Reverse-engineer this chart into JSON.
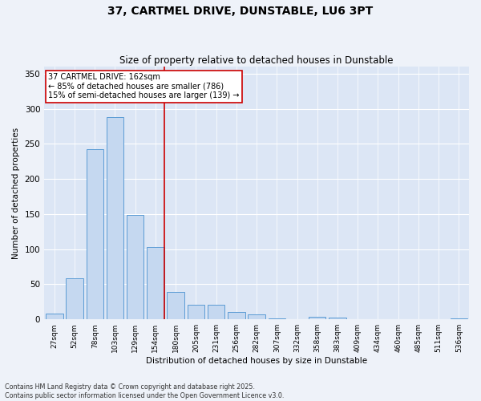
{
  "title": "37, CARTMEL DRIVE, DUNSTABLE, LU6 3PT",
  "subtitle": "Size of property relative to detached houses in Dunstable",
  "xlabel": "Distribution of detached houses by size in Dunstable",
  "ylabel": "Number of detached properties",
  "categories": [
    "27sqm",
    "52sqm",
    "78sqm",
    "103sqm",
    "129sqm",
    "154sqm",
    "180sqm",
    "205sqm",
    "231sqm",
    "256sqm",
    "282sqm",
    "307sqm",
    "332sqm",
    "358sqm",
    "383sqm",
    "409sqm",
    "434sqm",
    "460sqm",
    "485sqm",
    "511sqm",
    "536sqm"
  ],
  "values": [
    8,
    59,
    243,
    288,
    149,
    103,
    39,
    21,
    21,
    10,
    7,
    1,
    0,
    4,
    2,
    0,
    0,
    0,
    0,
    0,
    1
  ],
  "bar_color": "#c5d8f0",
  "bar_edge_color": "#5b9bd5",
  "vline_color": "#cc0000",
  "annotation_box_text": "37 CARTMEL DRIVE: 162sqm\n← 85% of detached houses are smaller (786)\n15% of semi-detached houses are larger (139) →",
  "annotation_box_color": "#cc0000",
  "annotation_box_bg": "#ffffff",
  "footer_line1": "Contains HM Land Registry data © Crown copyright and database right 2025.",
  "footer_line2": "Contains public sector information licensed under the Open Government Licence v3.0.",
  "background_color": "#eef2f9",
  "plot_bg_color": "#dce6f5",
  "grid_color": "#ffffff",
  "ylim": [
    0,
    360
  ],
  "yticks": [
    0,
    50,
    100,
    150,
    200,
    250,
    300,
    350
  ]
}
